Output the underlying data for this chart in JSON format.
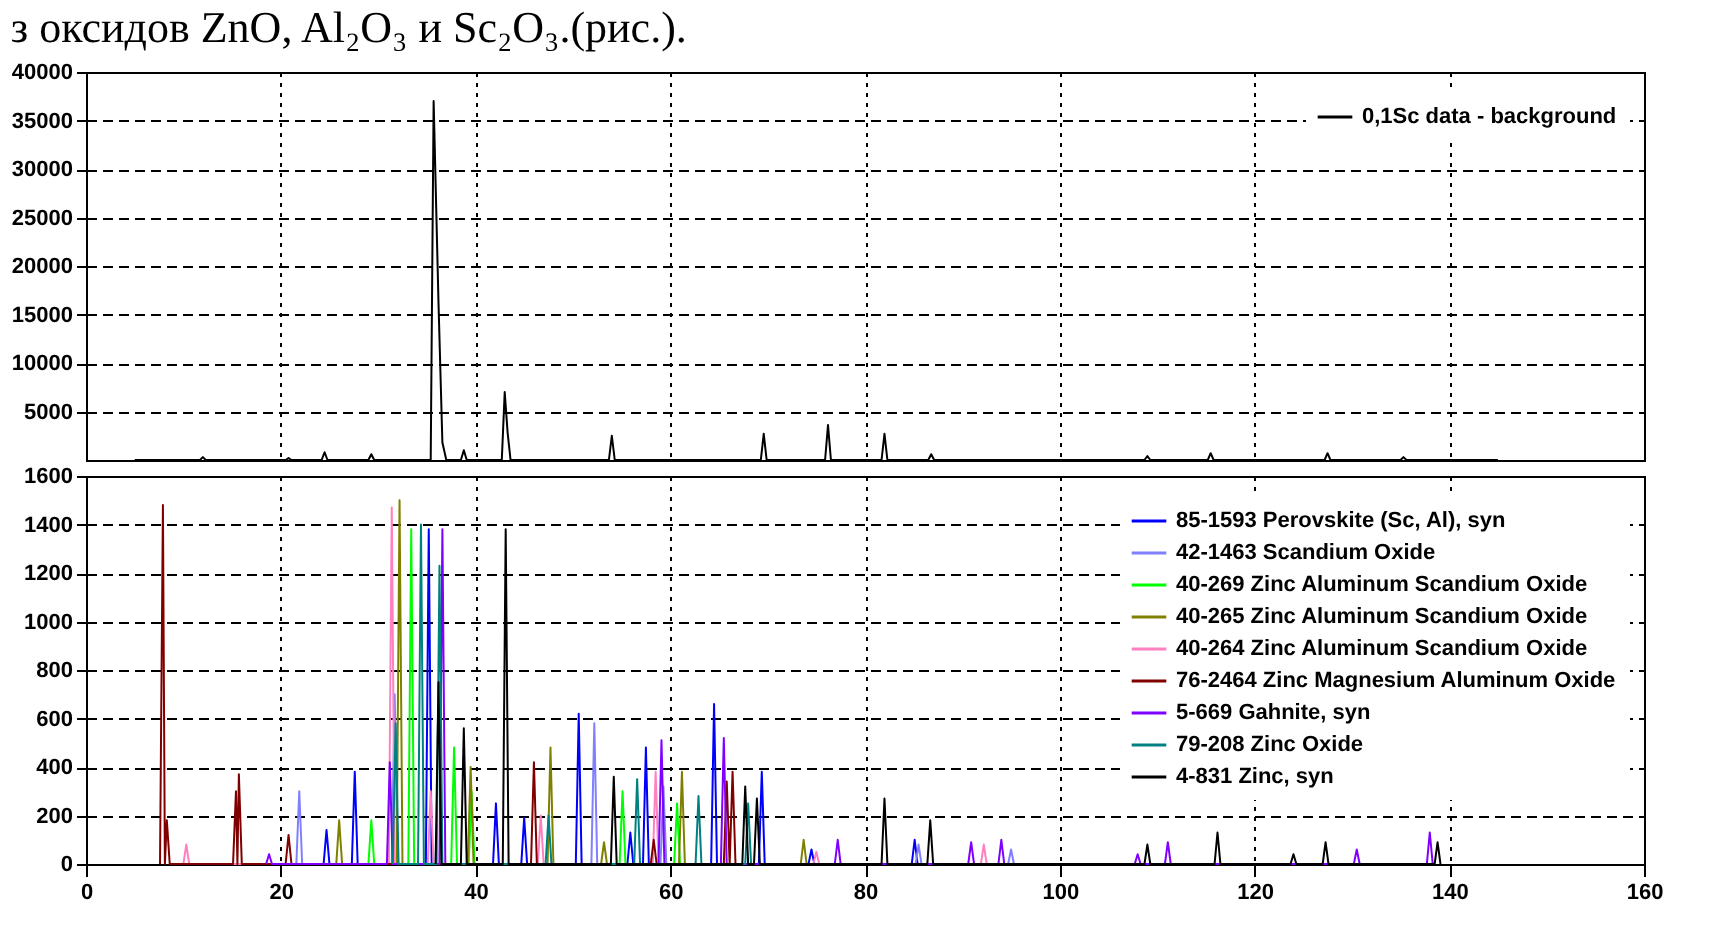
{
  "chart_data": [
    {
      "type": "line",
      "title": "з оксидов ZnO, Al₂O₃ и Sc₂O₃.(рис.).",
      "xlim": [
        0,
        160
      ],
      "xticks": [
        0,
        20,
        40,
        60,
        80,
        100,
        120,
        140,
        160
      ],
      "ylim": [
        0,
        40000
      ],
      "yticks": [
        5000,
        10000,
        15000,
        20000,
        25000,
        30000,
        35000,
        40000
      ],
      "tick_labels": "y",
      "grid": true,
      "legend": "top right",
      "series": [
        {
          "name": "0,1Sc data - background",
          "color": "#000000",
          "x": [
            5,
            11.7,
            12,
            12.3,
            20.5,
            20.8,
            21.1,
            24.2,
            24.5,
            24.8,
            29,
            29.3,
            29.6,
            35.4,
            35.7,
            36.2,
            36.6,
            37,
            38.5,
            38.8,
            39.1,
            42.7,
            43,
            43.3,
            43.6,
            53.7,
            54,
            54.3,
            69.3,
            69.6,
            69.9,
            75.9,
            76.2,
            76.5,
            81.7,
            82,
            82.3,
            86.5,
            86.8,
            87.1,
            108.7,
            109,
            109.3,
            115.2,
            115.5,
            115.8,
            127.2,
            127.5,
            127.8,
            135,
            135.3,
            135.6,
            145
          ],
          "values": [
            0,
            0,
            300,
            0,
            0,
            200,
            0,
            0,
            800,
            0,
            0,
            600,
            0,
            0,
            37000,
            16200,
            1800,
            0,
            0,
            1000,
            0,
            0,
            7000,
            2800,
            0,
            0,
            2500,
            0,
            0,
            2700,
            0,
            0,
            3600,
            0,
            0,
            2700,
            0,
            0,
            600,
            0,
            0,
            400,
            0,
            0,
            700,
            0,
            0,
            700,
            0,
            0,
            300,
            0,
            0
          ]
        }
      ]
    },
    {
      "type": "line",
      "xlim": [
        0,
        160
      ],
      "xticks": [
        0,
        20,
        40,
        60,
        80,
        100,
        120,
        140,
        160
      ],
      "ylim": [
        0,
        1600
      ],
      "yticks": [
        0,
        200,
        400,
        600,
        800,
        1000,
        1200,
        1400,
        1600
      ],
      "grid": true,
      "legend": "top right",
      "series": [
        {
          "name": "85-1593 Perovskite (Sc, Al), syn",
          "color": "#0000ff",
          "x": [
            24.4,
            24.7,
            25,
            27.3,
            27.6,
            27.9,
            34.9,
            35.2,
            35.5,
            41.8,
            42.1,
            42.4,
            44.7,
            45,
            45.3,
            50.3,
            50.6,
            50.9,
            55.6,
            55.9,
            56.2,
            57.2,
            57.5,
            57.8,
            64.2,
            64.5,
            64.8,
            69.1,
            69.4,
            69.7,
            74.2,
            74.5,
            74.8,
            84.8,
            85.1,
            85.4
          ],
          "values": [
            0,
            140,
            0,
            0,
            380,
            0,
            0,
            1380,
            0,
            0,
            250,
            0,
            0,
            190,
            0,
            0,
            620,
            0,
            0,
            130,
            0,
            0,
            480,
            0,
            0,
            660,
            0,
            0,
            380,
            0,
            0,
            60,
            0,
            0,
            100,
            0
          ]
        },
        {
          "name": "42-1463 Scandium Oxide",
          "color": "#8080ff",
          "x": [
            21.6,
            21.9,
            22.2,
            31.4,
            31.7,
            32,
            51.9,
            52.2,
            52.5,
            59,
            59.3,
            59.6,
            85.2,
            85.5,
            85.8,
            94.7,
            95,
            95.3
          ],
          "values": [
            0,
            300,
            0,
            0,
            700,
            0,
            0,
            580,
            0,
            0,
            320,
            0,
            0,
            80,
            0,
            0,
            60,
            0
          ]
        },
        {
          "name": "40-269 Zinc Aluminum Scandium Oxide",
          "color": "#00ff00",
          "x": [
            29,
            29.3,
            29.6,
            33.1,
            33.4,
            33.7,
            37.5,
            37.8,
            38.1,
            39.3,
            39.6,
            39.9,
            54.8,
            55.1,
            55.4,
            60.4,
            60.7,
            61
          ],
          "values": [
            0,
            180,
            0,
            0,
            1380,
            0,
            0,
            480,
            0,
            0,
            300,
            0,
            0,
            300,
            0,
            0,
            250,
            0
          ]
        },
        {
          "name": "40-265 Zinc Aluminum Scandium Oxide",
          "color": "#808000",
          "x": [
            25.7,
            26,
            26.3,
            31.9,
            32.2,
            32.5,
            39.2,
            39.5,
            39.8,
            47.4,
            47.7,
            48,
            52.9,
            53.2,
            53.5,
            60.9,
            61.2,
            61.5,
            73.4,
            73.7,
            74
          ],
          "values": [
            0,
            180,
            0,
            0,
            1500,
            0,
            0,
            400,
            0,
            0,
            480,
            0,
            0,
            90,
            0,
            0,
            380,
            0,
            0,
            100,
            0
          ]
        },
        {
          "name": "40-264 Zinc Aluminum Scandium Oxide",
          "color": "#ff80c0",
          "x": [
            10,
            10.3,
            10.6,
            31.1,
            31.4,
            31.7,
            35.1,
            35.4,
            35.7,
            46.4,
            46.7,
            47,
            58.2,
            58.5,
            58.8,
            74.7,
            75,
            75.3,
            91.9,
            92.2,
            92.5
          ],
          "values": [
            0,
            80,
            0,
            0,
            1470,
            0,
            0,
            300,
            0,
            0,
            200,
            0,
            0,
            380,
            0,
            0,
            50,
            0,
            0,
            80,
            0
          ]
        },
        {
          "name": "76-2464 Zinc Magnesium Aluminum Oxide",
          "color": "#800000",
          "x": [
            7.6,
            7.9,
            8.1,
            8.3,
            8.6,
            15.1,
            15.4,
            15.55,
            15.7,
            16,
            20.5,
            20.8,
            21.1,
            45.7,
            46,
            46.3,
            58,
            58.3,
            58.6,
            65.5,
            65.8,
            66.1,
            66.4,
            66.7
          ],
          "values": [
            0,
            1480,
            0,
            180,
            0,
            0,
            300,
            0,
            370,
            0,
            0,
            120,
            0,
            0,
            420,
            0,
            0,
            100,
            0,
            0,
            340,
            0,
            380,
            0
          ]
        },
        {
          "name": "5-669 Gahnite, syn",
          "color": "#8000ff",
          "x": [
            18.5,
            18.8,
            19.1,
            30.9,
            31.2,
            31.5,
            36.3,
            36.6,
            36.9,
            58.8,
            59.1,
            59.4,
            65.2,
            65.5,
            65.8,
            76.9,
            77.2,
            77.5,
            90.6,
            90.9,
            91.2,
            93.7,
            94,
            94.3,
            107.7,
            108,
            108.3,
            110.8,
            111.1,
            111.4,
            130.2,
            130.5,
            130.8,
            137.7,
            138,
            138.3
          ],
          "values": [
            0,
            40,
            0,
            0,
            420,
            0,
            0,
            1380,
            0,
            0,
            510,
            0,
            0,
            520,
            0,
            0,
            100,
            0,
            0,
            90,
            0,
            0,
            100,
            0,
            0,
            40,
            0,
            0,
            90,
            0,
            0,
            60,
            0,
            0,
            130,
            0
          ]
        },
        {
          "name": "79-208 Zinc Oxide",
          "color": "#008080",
          "x": [
            31.5,
            31.8,
            32.1,
            34.1,
            34.4,
            34.7,
            36,
            36.3,
            36.6,
            47.2,
            47.5,
            47.8,
            56.3,
            56.6,
            56.9,
            62.6,
            62.9,
            63.2,
            67.7,
            68,
            68.3
          ],
          "values": [
            0,
            580,
            0,
            0,
            1400,
            0,
            0,
            1230,
            0,
            0,
            200,
            0,
            0,
            350,
            0,
            0,
            280,
            0,
            0,
            250,
            0
          ]
        },
        {
          "name": "4-831 Zinc, syn",
          "color": "#000000",
          "x": [
            35.9,
            36.2,
            36.5,
            38.5,
            38.8,
            39.1,
            42.8,
            43.1,
            43.4,
            53.9,
            54.2,
            54.5,
            67.4,
            67.7,
            68,
            68.6,
            68.9,
            69.2,
            81.7,
            82,
            82.3,
            86.4,
            86.7,
            87,
            108.7,
            109,
            109.3,
            115.9,
            116.2,
            116.5,
            123.7,
            124,
            124.3,
            127,
            127.3,
            127.6,
            138.5,
            138.8,
            139.1
          ],
          "values": [
            0,
            750,
            0,
            0,
            560,
            0,
            0,
            1380,
            0,
            0,
            360,
            0,
            0,
            320,
            0,
            0,
            270,
            0,
            0,
            270,
            0,
            0,
            180,
            0,
            0,
            80,
            0,
            0,
            130,
            0,
            0,
            40,
            0,
            0,
            90,
            0,
            0,
            90,
            0
          ]
        }
      ]
    }
  ]
}
